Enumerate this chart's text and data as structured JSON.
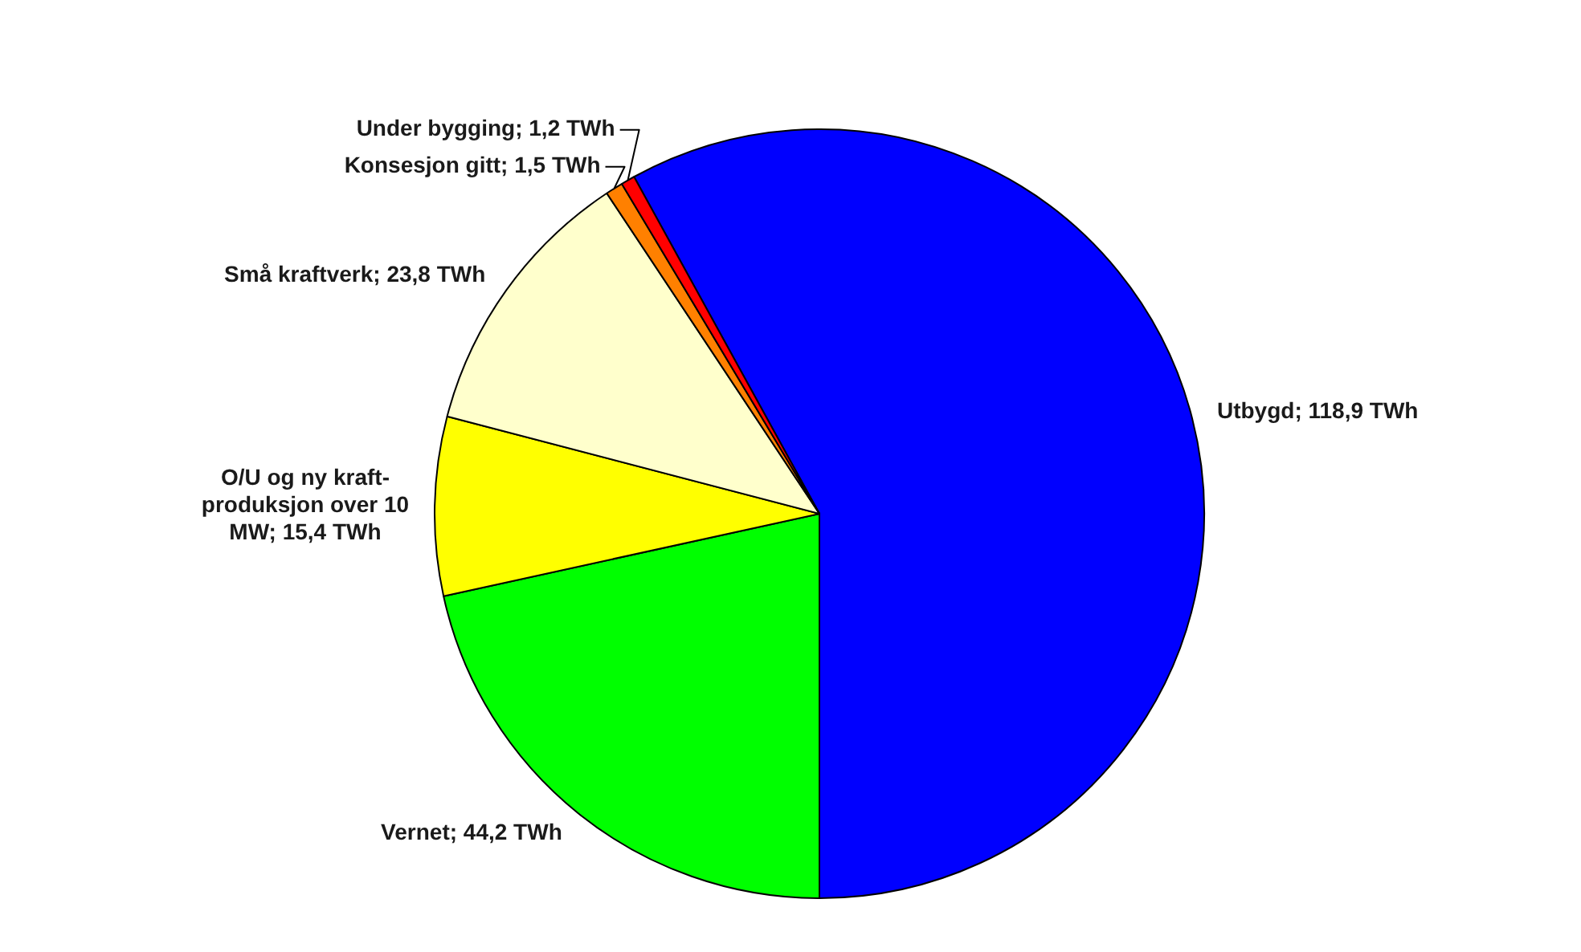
{
  "chart_data": {
    "type": "pie",
    "categories": [
      "Utbygd",
      "Vernet",
      "O/U og ny kraft-produksjon over 10 MW",
      "Små kraftverk",
      "Konsesjon gitt",
      "Under bygging"
    ],
    "values": [
      118.9,
      44.2,
      15.4,
      23.8,
      1.5,
      1.2
    ],
    "colors": [
      "#0000ff",
      "#00ff00",
      "#ffff00",
      "#ffffcc",
      "#ff8000",
      "#ff0000"
    ],
    "value_labels": [
      "118,9 TWh",
      "44,2 TWh",
      "15,4 TWh",
      "23,8 TWh",
      "1,5 TWh",
      "1,2 TWh"
    ]
  }
}
